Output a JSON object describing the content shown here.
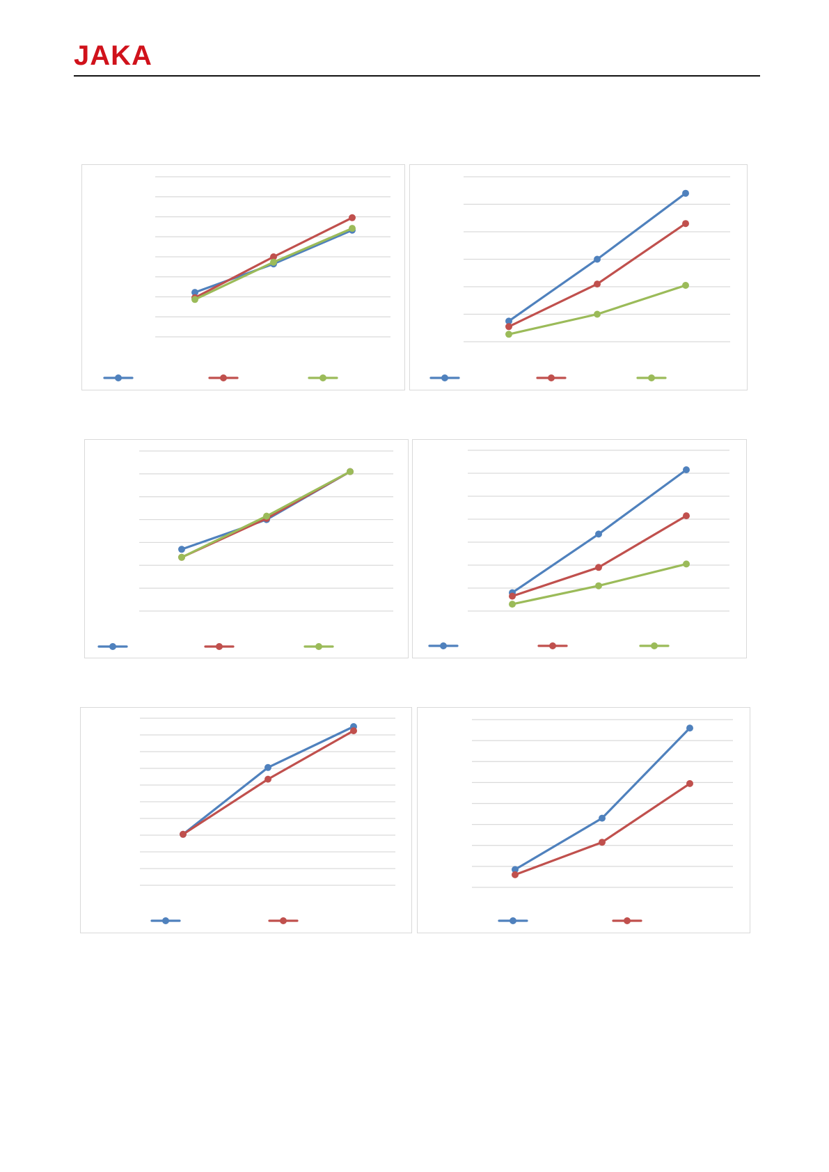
{
  "brand": {
    "logo_text": "JAKA",
    "color": "#d0121b"
  },
  "palette": {
    "blue": "#4f81bd",
    "red": "#c0504d",
    "green": "#9bbb59",
    "grid": "#d9d9d9"
  },
  "chart_data": [
    {
      "type": "line",
      "grid_lines": 9,
      "ylim": [
        0,
        9
      ],
      "legend_placement": "bottom",
      "series": [
        {
          "color": "blue",
          "values": [
            2.5,
            4.1,
            6.0
          ]
        },
        {
          "color": "red",
          "values": [
            2.2,
            4.5,
            6.7
          ]
        },
        {
          "color": "green",
          "values": [
            2.1,
            4.2,
            6.1
          ]
        }
      ]
    },
    {
      "type": "line",
      "grid_lines": 7,
      "ylim": [
        0,
        6
      ],
      "legend_placement": "bottom",
      "series": [
        {
          "color": "blue",
          "values": [
            0.75,
            3.0,
            5.4
          ]
        },
        {
          "color": "red",
          "values": [
            0.55,
            2.1,
            4.3
          ]
        },
        {
          "color": "green",
          "values": [
            0.27,
            1.0,
            2.05
          ]
        }
      ]
    },
    {
      "type": "line",
      "grid_lines": 8,
      "ylim": [
        0,
        7
      ],
      "legend_placement": "bottom",
      "series": [
        {
          "color": "blue",
          "values": [
            2.7,
            4.0,
            6.1
          ]
        },
        {
          "color": "red",
          "values": [
            2.35,
            4.05,
            6.1
          ]
        },
        {
          "color": "green",
          "values": [
            2.35,
            4.15,
            6.1
          ]
        }
      ]
    },
    {
      "type": "line",
      "grid_lines": 8,
      "ylim": [
        0,
        7
      ],
      "legend_placement": "bottom",
      "series": [
        {
          "color": "blue",
          "values": [
            0.8,
            3.35,
            6.15
          ]
        },
        {
          "color": "red",
          "values": [
            0.65,
            1.9,
            4.15
          ]
        },
        {
          "color": "green",
          "values": [
            0.3,
            1.1,
            2.05
          ]
        }
      ]
    },
    {
      "type": "line",
      "grid_lines": 11,
      "ylim": [
        0,
        10
      ],
      "legend_placement": "bottom",
      "series": [
        {
          "color": "blue",
          "values": [
            3.05,
            7.05,
            9.5
          ]
        },
        {
          "color": "red",
          "values": [
            3.05,
            6.35,
            9.25
          ]
        }
      ]
    },
    {
      "type": "line",
      "grid_lines": 9,
      "ylim": [
        0,
        8
      ],
      "legend_placement": "bottom",
      "series": [
        {
          "color": "blue",
          "values": [
            0.85,
            3.3,
            7.6
          ]
        },
        {
          "color": "red",
          "values": [
            0.6,
            2.15,
            4.95
          ]
        }
      ]
    }
  ]
}
